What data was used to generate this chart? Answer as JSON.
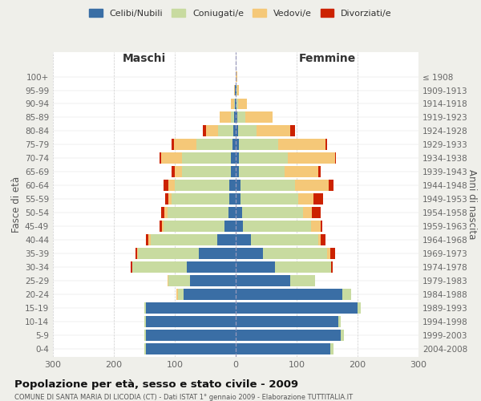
{
  "age_groups": [
    "0-4",
    "5-9",
    "10-14",
    "15-19",
    "20-24",
    "25-29",
    "30-34",
    "35-39",
    "40-44",
    "45-49",
    "50-54",
    "55-59",
    "60-64",
    "65-69",
    "70-74",
    "75-79",
    "80-84",
    "85-89",
    "90-94",
    "95-99",
    "100+"
  ],
  "birth_years": [
    "2004-2008",
    "1999-2003",
    "1994-1998",
    "1989-1993",
    "1984-1988",
    "1979-1983",
    "1974-1978",
    "1969-1973",
    "1964-1968",
    "1959-1963",
    "1954-1958",
    "1949-1953",
    "1944-1948",
    "1939-1943",
    "1934-1938",
    "1929-1933",
    "1924-1928",
    "1919-1923",
    "1914-1918",
    "1909-1913",
    "≤ 1908"
  ],
  "colors": {
    "celibi": "#3a6ea5",
    "coniugati": "#c8dba0",
    "vedovi": "#f5c878",
    "divorziati": "#cc2200"
  },
  "maschi": {
    "celibi": [
      148,
      148,
      148,
      148,
      85,
      75,
      80,
      60,
      30,
      18,
      12,
      10,
      10,
      8,
      8,
      5,
      4,
      2,
      1,
      1,
      0
    ],
    "coniugati": [
      2,
      2,
      2,
      2,
      10,
      35,
      90,
      100,
      110,
      100,
      100,
      95,
      90,
      80,
      80,
      60,
      25,
      6,
      2,
      0,
      0
    ],
    "vedovi": [
      0,
      0,
      0,
      0,
      2,
      2,
      0,
      2,
      3,
      3,
      5,
      5,
      10,
      12,
      35,
      36,
      20,
      18,
      5,
      2,
      0
    ],
    "divorziati": [
      0,
      0,
      0,
      0,
      0,
      0,
      3,
      2,
      5,
      4,
      5,
      6,
      8,
      5,
      2,
      4,
      5,
      0,
      0,
      0,
      0
    ]
  },
  "femmine": {
    "celibi": [
      155,
      172,
      168,
      200,
      175,
      90,
      65,
      45,
      25,
      12,
      10,
      8,
      8,
      5,
      5,
      5,
      4,
      2,
      1,
      1,
      0
    ],
    "coniugati": [
      5,
      5,
      5,
      5,
      14,
      40,
      92,
      105,
      110,
      112,
      100,
      95,
      90,
      75,
      80,
      65,
      30,
      14,
      3,
      1,
      0
    ],
    "vedovi": [
      0,
      0,
      0,
      0,
      0,
      0,
      0,
      5,
      5,
      15,
      15,
      25,
      55,
      55,
      78,
      78,
      55,
      45,
      15,
      3,
      2
    ],
    "divorziati": [
      0,
      0,
      0,
      0,
      0,
      0,
      2,
      8,
      8,
      3,
      15,
      15,
      8,
      5,
      2,
      2,
      8,
      0,
      0,
      0,
      0
    ]
  },
  "title": "Popolazione per età, sesso e stato civile - 2009",
  "subtitle": "COMUNE DI SANTA MARIA DI LICODIA (CT) - Dati ISTAT 1° gennaio 2009 - Elaborazione TUTTITALIA.IT",
  "xlabel_left": "Maschi",
  "xlabel_right": "Femmine",
  "ylabel_left": "Fasce di età",
  "ylabel_right": "Anni di nascita",
  "xlim": 300,
  "bg_color": "#efefea",
  "plot_bg": "#ffffff",
  "legend_labels": [
    "Celibi/Nubili",
    "Coniugati/e",
    "Vedovi/e",
    "Divorziati/e"
  ]
}
